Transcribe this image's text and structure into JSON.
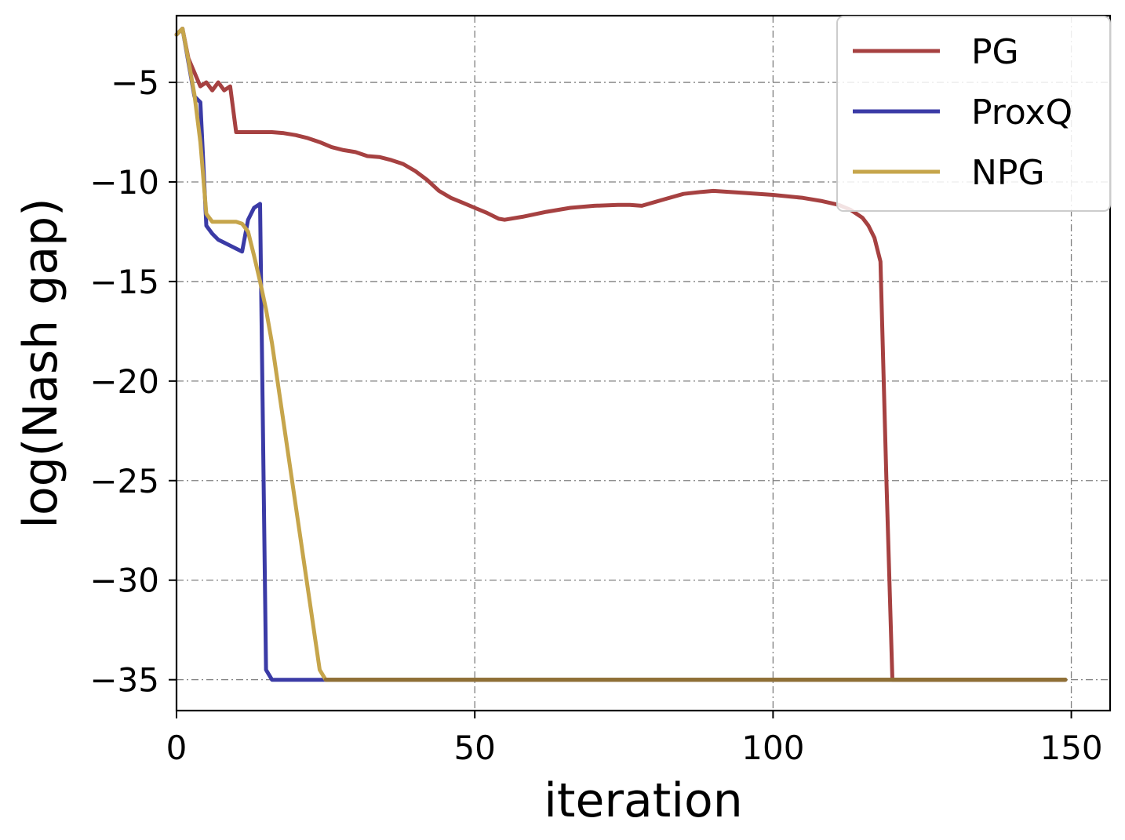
{
  "chart_data": {
    "type": "line",
    "title": "",
    "xlabel": "iteration",
    "ylabel": "log(Nash gap)",
    "xlim": [
      0,
      156.5
    ],
    "ylim": [
      -36.55,
      -1.65
    ],
    "xticks": [
      0,
      50,
      100,
      150
    ],
    "yticks": [
      -5,
      -10,
      -15,
      -20,
      -25,
      -30,
      -35
    ],
    "xtick_labels": [
      "0",
      "50",
      "100",
      "150"
    ],
    "ytick_labels": [
      "−5",
      "−10",
      "−15",
      "−20",
      "−25",
      "−30",
      "−35"
    ],
    "grid": true,
    "legend_position": "top-right",
    "series": [
      {
        "name": "PG",
        "color": "#a64141",
        "x": [
          0,
          1,
          2,
          3,
          4,
          5,
          6,
          7,
          8,
          9,
          10,
          12,
          14,
          16,
          18,
          20,
          22,
          24,
          26,
          28,
          30,
          32,
          34,
          36,
          38,
          40,
          42,
          44,
          46,
          48,
          50,
          52,
          54,
          55,
          58,
          62,
          66,
          70,
          74,
          76,
          78,
          82,
          85,
          88,
          90,
          95,
          100,
          105,
          108,
          111,
          113,
          115,
          116,
          117,
          118,
          119,
          120,
          121,
          125,
          130,
          140,
          149
        ],
        "values": [
          -2.6,
          -2.3,
          -3.8,
          -4.5,
          -5.2,
          -5.0,
          -5.4,
          -5.0,
          -5.4,
          -5.2,
          -7.5,
          -7.5,
          -7.5,
          -7.5,
          -7.55,
          -7.65,
          -7.8,
          -8.0,
          -8.25,
          -8.4,
          -8.5,
          -8.7,
          -8.75,
          -8.9,
          -9.1,
          -9.45,
          -9.9,
          -10.45,
          -10.8,
          -11.05,
          -11.3,
          -11.55,
          -11.85,
          -11.9,
          -11.75,
          -11.5,
          -11.3,
          -11.2,
          -11.15,
          -11.15,
          -11.2,
          -10.85,
          -10.6,
          -10.5,
          -10.45,
          -10.55,
          -10.65,
          -10.8,
          -10.95,
          -11.15,
          -11.4,
          -11.8,
          -12.2,
          -12.8,
          -14.0,
          -25.0,
          -35.0,
          -35.0,
          -35.0,
          -35.0,
          -35.0,
          -35.0
        ]
      },
      {
        "name": "ProxQ",
        "color": "#3b3ba6",
        "x": [
          0,
          1,
          2,
          3,
          4,
          5,
          6,
          7,
          8,
          9,
          10,
          11,
          12,
          13,
          14,
          15,
          16,
          20,
          25,
          30,
          50,
          100,
          149
        ],
        "values": [
          -2.6,
          -2.3,
          -4.0,
          -5.7,
          -6.0,
          -12.2,
          -12.6,
          -12.9,
          -13.05,
          -13.2,
          -13.35,
          -13.5,
          -11.9,
          -11.3,
          -11.1,
          -34.5,
          -35.0,
          -35.0,
          -35.0,
          -35.0,
          -35.0,
          -35.0,
          -35.0
        ]
      },
      {
        "name": "NPG",
        "color": "#c6a54b",
        "x": [
          0,
          1,
          2,
          3,
          4,
          5,
          6,
          8,
          10,
          11,
          12,
          13,
          14,
          15,
          16,
          18,
          20,
          22,
          24,
          25,
          26,
          30,
          50,
          100,
          149
        ],
        "values": [
          -2.6,
          -2.3,
          -3.9,
          -5.6,
          -8.0,
          -11.6,
          -12.0,
          -12.0,
          -12.0,
          -12.1,
          -12.5,
          -13.7,
          -15.0,
          -16.4,
          -18.1,
          -22.2,
          -26.3,
          -30.4,
          -34.5,
          -35.0,
          -35.0,
          -35.0,
          -35.0,
          -35.0,
          -35.0
        ]
      }
    ],
    "overlap_color": "#8f6f35"
  }
}
